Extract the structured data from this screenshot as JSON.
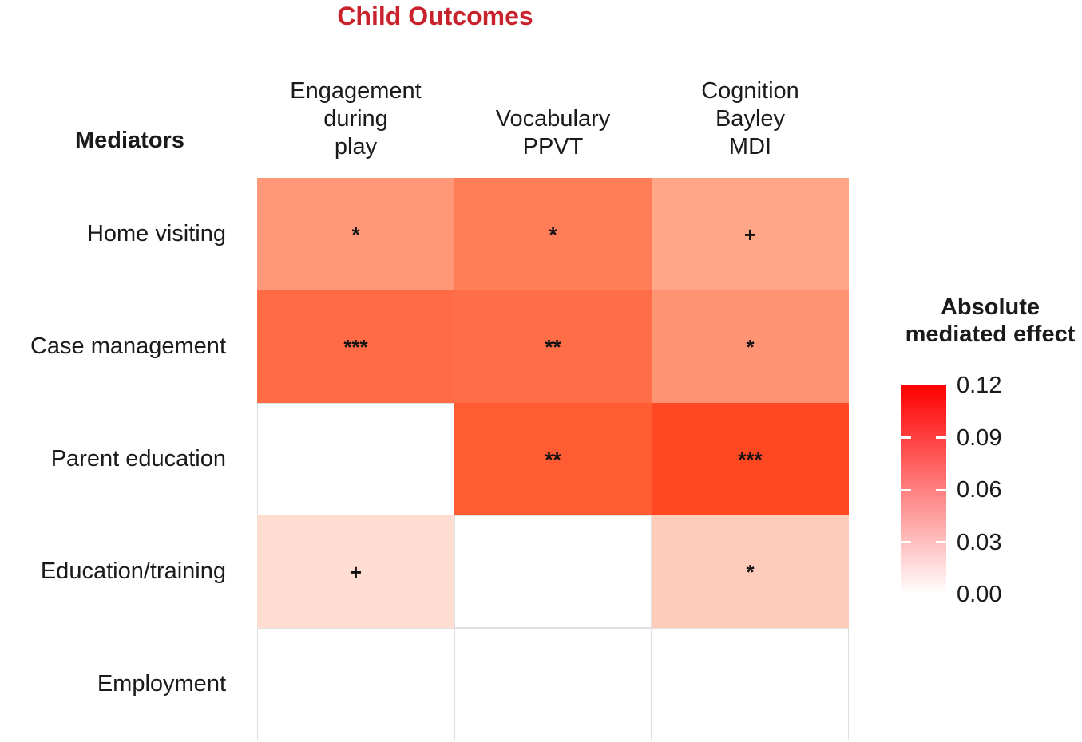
{
  "title": {
    "text": "Child Outcomes",
    "color": "#C8232C"
  },
  "row_header": "Mediators",
  "legend": {
    "title": "Absolute\nmediated effect"
  },
  "chart_data": {
    "type": "heatmap",
    "title": "Child Outcomes",
    "row_header": "Mediators",
    "rows": [
      "Home visiting",
      "Case management",
      "Parent education",
      "Education/training",
      "Employment"
    ],
    "columns": [
      "Engagement\nduring\nplay",
      "Vocabulary\nPPVT",
      "Cognition\nBayley\nMDI"
    ],
    "legend_title": "Absolute mediated effect",
    "scale": {
      "min": 0,
      "max": 0.12,
      "low_color": "#FFFFFF",
      "high_color": "#FF0000",
      "ticks": [
        {
          "label": "0.12",
          "value": 0.12
        },
        {
          "label": "0.09",
          "value": 0.09
        },
        {
          "label": "0.06",
          "value": 0.06
        },
        {
          "label": "0.03",
          "value": 0.03
        },
        {
          "label": "0.00",
          "value": 0.0
        }
      ]
    },
    "cells": [
      [
        {
          "row": "Home visiting",
          "column": "Engagement during play",
          "significance": "*",
          "color": "#FF9878",
          "approx_value": 0.05
        },
        {
          "row": "Home visiting",
          "column": "Vocabulary PPVT",
          "significance": "*",
          "color": "#FF7E58",
          "approx_value": 0.06
        },
        {
          "row": "Home visiting",
          "column": "Cognition Bayley MDI",
          "significance": "+",
          "color": "#FFA588",
          "approx_value": 0.04
        }
      ],
      [
        {
          "row": "Case management",
          "column": "Engagement during play",
          "significance": "***",
          "color": "#FF6B44",
          "approx_value": 0.07
        },
        {
          "row": "Case management",
          "column": "Vocabulary PPVT",
          "significance": "**",
          "color": "#FF6E47",
          "approx_value": 0.07
        },
        {
          "row": "Case management",
          "column": "Cognition Bayley MDI",
          "significance": "*",
          "color": "#FF9474",
          "approx_value": 0.05
        }
      ],
      [
        {
          "row": "Parent education",
          "column": "Engagement during play",
          "significance": "",
          "color": "#FFFFFF",
          "approx_value": null
        },
        {
          "row": "Parent education",
          "column": "Vocabulary PPVT",
          "significance": "**",
          "color": "#FF5C33",
          "approx_value": 0.08
        },
        {
          "row": "Parent education",
          "column": "Cognition Bayley MDI",
          "significance": "***",
          "color": "#FF4721",
          "approx_value": 0.09
        }
      ],
      [
        {
          "row": "Education/training",
          "column": "Engagement during play",
          "significance": "+",
          "color": "#FFDDD1",
          "approx_value": 0.015
        },
        {
          "row": "Education/training",
          "column": "Vocabulary PPVT",
          "significance": "",
          "color": "#FFFFFF",
          "approx_value": null
        },
        {
          "row": "Education/training",
          "column": "Cognition Bayley MDI",
          "significance": "*",
          "color": "#FFCBBA",
          "approx_value": 0.025
        }
      ],
      [
        {
          "row": "Employment",
          "column": "Engagement during play",
          "significance": "",
          "color": "#FFFFFF",
          "approx_value": null
        },
        {
          "row": "Employment",
          "column": "Vocabulary PPVT",
          "significance": "",
          "color": "#FFFFFF",
          "approx_value": null
        },
        {
          "row": "Employment",
          "column": "Cognition Bayley MDI",
          "significance": "",
          "color": "#FFFFFF",
          "approx_value": null
        }
      ]
    ]
  }
}
